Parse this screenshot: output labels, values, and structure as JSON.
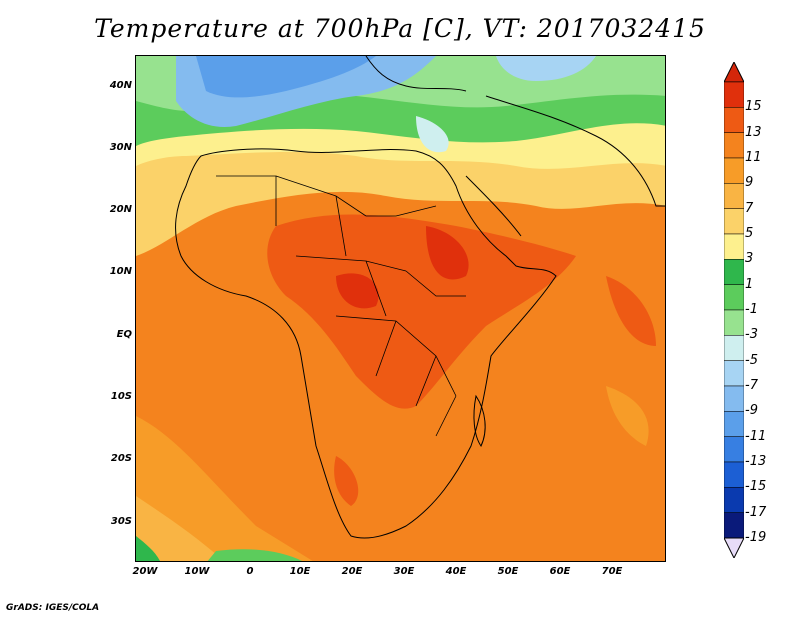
{
  "title": "Temperature at 700hPa [C], VT: 2017032415",
  "footer": "GrADS: IGES/COLA",
  "lat_labels": [
    "40N",
    "30N",
    "20N",
    "10N",
    "EQ",
    "10S",
    "20S",
    "30S"
  ],
  "lon_labels": [
    "20W",
    "10W",
    "0",
    "10E",
    "20E",
    "30E",
    "40E",
    "50E",
    "60E",
    "70E"
  ],
  "colorbar": {
    "labels": [
      "15",
      "13",
      "11",
      "9",
      "7",
      "5",
      "3",
      "1",
      "-1",
      "-3",
      "-5",
      "-7",
      "-9",
      "-11",
      "-13",
      "-15",
      "-17",
      "-19"
    ],
    "colors": [
      "#e0300c",
      "#ee5a14",
      "#f4831e",
      "#f79c28",
      "#f9b444",
      "#fbd269",
      "#fdf08e",
      "#2fb74c",
      "#5ccc5c",
      "#97e28f",
      "#cfefef",
      "#a7d4f3",
      "#84bbef",
      "#5b9fea",
      "#377fe2",
      "#1c5fd4",
      "#0a3aaf",
      "#0a1a7a"
    ],
    "top_color": "#d4260a",
    "bottom_color": "#e7dcf8"
  }
}
